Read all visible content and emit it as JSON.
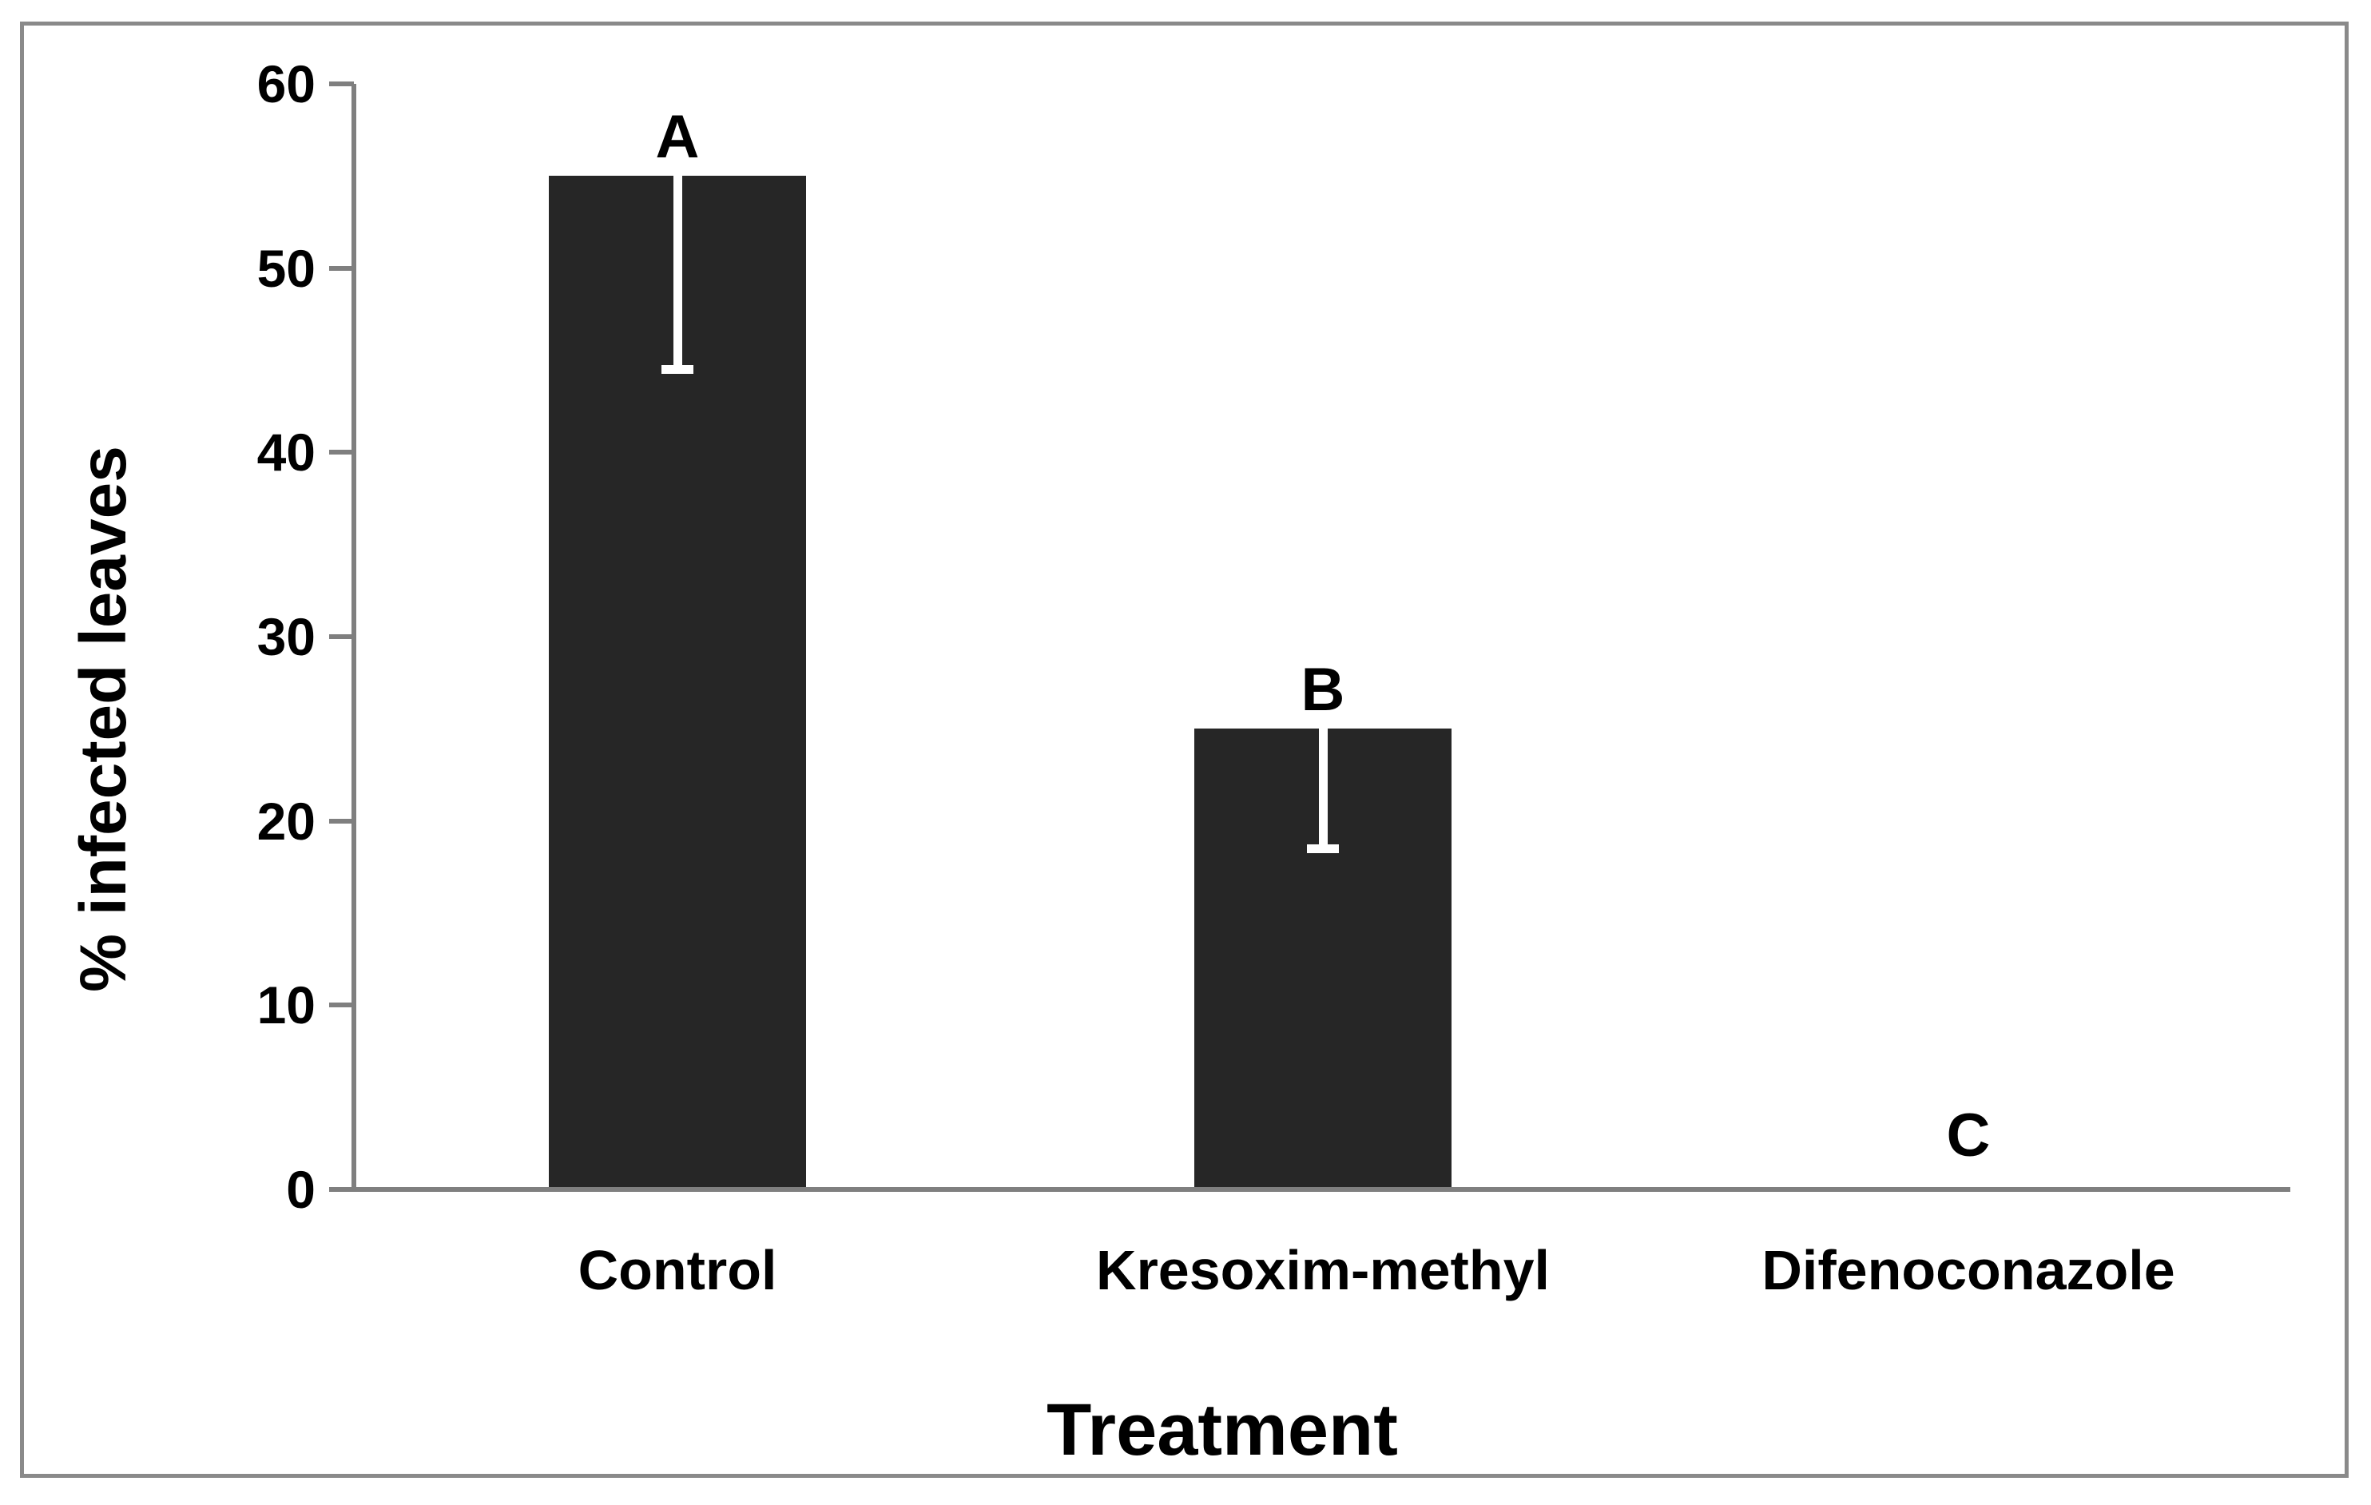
{
  "chart_data": {
    "type": "bar",
    "title": "",
    "xlabel": "Treatment",
    "ylabel": "% infected leaves",
    "categories": [
      "Control",
      "Kresoxim-methyl",
      "Difenoconazole"
    ],
    "values": [
      55,
      25,
      0
    ],
    "error_low": [
      44.5,
      18.5,
      null
    ],
    "significance_letters": [
      "A",
      "B",
      "C"
    ],
    "ylim": [
      0,
      60
    ],
    "yticks": [
      0,
      10,
      20,
      30,
      40,
      50,
      60
    ],
    "grid": false,
    "legend": null,
    "bar_color": "#262626",
    "axis_color": "#7f7f7f",
    "frame_border_color": "#8a8a8a",
    "error_bar_color": "#ffffff",
    "text_color": "#000000",
    "background_color": "#ffffff"
  }
}
